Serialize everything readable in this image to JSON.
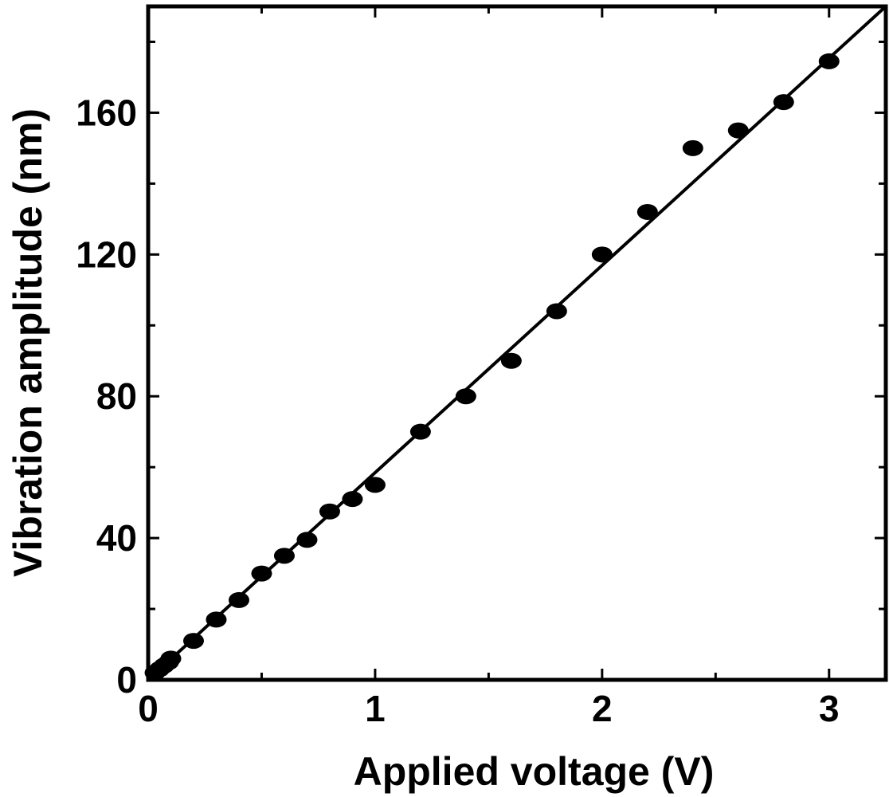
{
  "chart_data": {
    "type": "scatter",
    "title": "",
    "xlabel": "Applied voltage (V)",
    "ylabel": "Vibration amplitude (nm)",
    "xlim": [
      0,
      3.25
    ],
    "ylim": [
      0,
      190
    ],
    "x_ticks": [
      0,
      1,
      2,
      3
    ],
    "y_ticks": [
      0,
      40,
      80,
      120,
      160
    ],
    "grid": false,
    "legend": "none",
    "series": [
      {
        "kind": "points",
        "color": "#000000",
        "x": [
          0.03,
          0.05,
          0.07,
          0.09,
          0.1,
          0.2,
          0.3,
          0.4,
          0.5,
          0.6,
          0.7,
          0.8,
          0.9,
          1.0,
          1.2,
          1.4,
          1.6,
          1.8,
          2.0,
          2.2,
          2.4,
          2.6,
          2.8,
          3.0
        ],
        "y": [
          2,
          3,
          4,
          5,
          6,
          11,
          17,
          22.5,
          30,
          35,
          39.5,
          47.5,
          51,
          55,
          70,
          80,
          90,
          104,
          120,
          132,
          150,
          155,
          163,
          174.5
        ]
      },
      {
        "kind": "fit-line",
        "color": "#000000",
        "x": [
          0,
          3.25
        ],
        "y": [
          0,
          190
        ]
      }
    ]
  }
}
